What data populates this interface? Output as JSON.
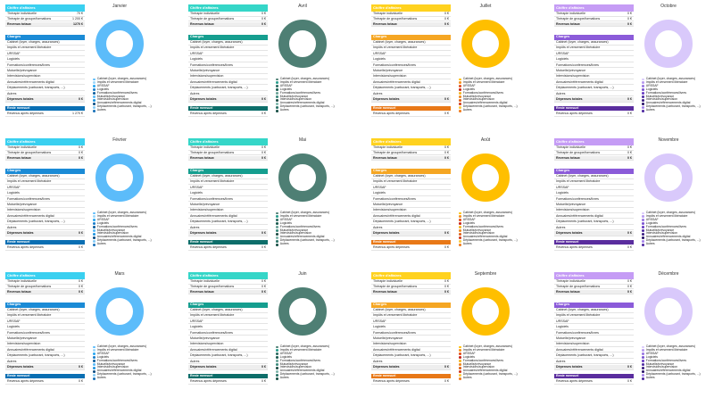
{
  "labels": {
    "ca_header": "Chiffre d'affaires",
    "ca_rows": [
      "Thérapie individuelle",
      "Thérapie de groupe/formations",
      "Revenus totaux"
    ],
    "charges_header": "Charges",
    "charge_rows": [
      "Cabinet (loyer, charges, assurances)",
      "Impôts et versement libératoire",
      "URSSAF",
      "Logiciels",
      "Formations/conférences/livres",
      "Mutuelle/prévoyance",
      "Intervisions/supervision",
      "Annuaires/référencements digital",
      "Déplacements (carburant, transports, ...)",
      "Autres",
      "Dépenses totales"
    ],
    "rm_header": "Reste mensuel",
    "rm_row": "Revenus après dépenses"
  },
  "legend_items": [
    "Cabinet (loyer, charges, assurances)",
    "Impôts et versement libératoire",
    "URSSAF",
    "Logiciels",
    "Formations/conférences/livres",
    "Mutuelle/prévoyance",
    "Intervisions/supervision",
    "Annuaires/référencements digital",
    "Déplacements (carburant, transports, ...)",
    "Autres"
  ],
  "themes": [
    {
      "name": "blue",
      "header": "#3ad0f0",
      "charges": "#1b8bd6",
      "reste": "#0a6fb3",
      "ring": "#5cbcfa",
      "legend": [
        "#5cbcfa",
        "#9fd9fb",
        "#2aa8f2",
        "#1a7fcb",
        "#0e5f9e",
        "#5cbcfa",
        "#2296e0",
        "#0b4d85",
        "#86ccf7",
        "#1c73b9"
      ]
    },
    {
      "name": "teal",
      "header": "#35d6c8",
      "charges": "#159e8f",
      "reste": "#0d6e6a",
      "ring": "#4e7f74",
      "legend": [
        "#4e7f74",
        "#2b9e8d",
        "#2c6d62",
        "#1b5b50",
        "#6aa398",
        "#3d8a7c",
        "#1d4d44",
        "#7fb6ab",
        "#2c7568",
        "#185045"
      ]
    },
    {
      "name": "orange",
      "header": "#ffd21f",
      "charges": "#f5a623",
      "reste": "#e87817",
      "ring": "#ffbf00",
      "legend": [
        "#ffbf00",
        "#f7941d",
        "#e34d1a",
        "#c8241a",
        "#f5b41f",
        "#ef8a21",
        "#e0601a",
        "#d23a1a",
        "#fbc93b",
        "#f17c1f"
      ]
    },
    {
      "name": "purple",
      "header": "#c59cf5",
      "charges": "#8b5bd9",
      "reste": "#5a2d9e",
      "ring": "#d9c9fb",
      "legend": [
        "#d9c9fb",
        "#b89bf0",
        "#9a77e3",
        "#7c55d2",
        "#6a3ec4",
        "#5230a3",
        "#3e2183",
        "#2a1469",
        "#a583ea",
        "#4f2aa1"
      ]
    }
  ],
  "cells": [
    {
      "month": "Janvier",
      "theme": 0,
      "therapie_ind": "70 €",
      "therapie_groupe": "1 200 €",
      "revenus_totaux": "1270 €",
      "depenses_totales": "0 €",
      "reste": "1 270 €"
    },
    {
      "month": "Avril",
      "theme": 1,
      "therapie_ind": "0 €",
      "therapie_groupe": "0 €",
      "revenus_totaux": "0 €",
      "depenses_totales": "0 €",
      "reste": "0 €"
    },
    {
      "month": "Juillet",
      "theme": 2,
      "therapie_ind": "0 €",
      "therapie_groupe": "0 €",
      "revenus_totaux": "0 €",
      "depenses_totales": "0 €",
      "reste": "0 €"
    },
    {
      "month": "Octobre",
      "theme": 3,
      "therapie_ind": "0 €",
      "therapie_groupe": "0 €",
      "revenus_totaux": "0 €",
      "depenses_totales": "0 €",
      "reste": "0 €"
    },
    {
      "month": "Février",
      "theme": 0,
      "therapie_ind": "0 €",
      "therapie_groupe": "0 €",
      "revenus_totaux": "0 €",
      "depenses_totales": "0 €",
      "reste": "0 €"
    },
    {
      "month": "Mai",
      "theme": 1,
      "therapie_ind": "0 €",
      "therapie_groupe": "0 €",
      "revenus_totaux": "0 €",
      "depenses_totales": "0 €",
      "reste": "0 €"
    },
    {
      "month": "Août",
      "theme": 2,
      "therapie_ind": "0 €",
      "therapie_groupe": "0 €",
      "revenus_totaux": "0 €",
      "depenses_totales": "0 €",
      "reste": "0 €"
    },
    {
      "month": "Novembre",
      "theme": 3,
      "therapie_ind": "0 €",
      "therapie_groupe": "0 €",
      "revenus_totaux": "0 €",
      "depenses_totales": "0 €",
      "reste": "0 €"
    },
    {
      "month": "Mars",
      "theme": 0,
      "therapie_ind": "0 €",
      "therapie_groupe": "0 €",
      "revenus_totaux": "0 €",
      "depenses_totales": "0 €",
      "reste": "0 €"
    },
    {
      "month": "Juin",
      "theme": 1,
      "therapie_ind": "0 €",
      "therapie_groupe": "0 €",
      "revenus_totaux": "0 €",
      "depenses_totales": "0 €",
      "reste": "0 €"
    },
    {
      "month": "Septembre",
      "theme": 2,
      "therapie_ind": "0 €",
      "therapie_groupe": "0 €",
      "revenus_totaux": "0 €",
      "depenses_totales": "0 €",
      "reste": "0 €"
    },
    {
      "month": "Décembre",
      "theme": 3,
      "therapie_ind": "0 €",
      "therapie_groupe": "0 €",
      "revenus_totaux": "0 €",
      "depenses_totales": "0 €",
      "reste": "0 €"
    }
  ],
  "chart_data": [
    {
      "type": "pie",
      "title": "Janvier",
      "categories": [
        "Cabinet (loyer, charges, assurances)",
        "Impôts et versement libératoire",
        "URSSAF",
        "Logiciels",
        "Formations/conférences/livres",
        "Mutuelle/prévoyance",
        "Intervisions/supervision",
        "Annuaires/référencements digital",
        "Déplacements (carburant, transports, ...)",
        "Autres"
      ],
      "values": [
        1,
        0,
        0,
        0,
        0,
        0,
        0,
        0,
        0,
        0
      ]
    },
    {
      "type": "pie",
      "title": "Avril",
      "categories": [
        "Cabinet (loyer, charges, assurances)",
        "Impôts et versement libératoire",
        "URSSAF",
        "Logiciels",
        "Formations/conférences/livres",
        "Mutuelle/prévoyance",
        "Intervisions/supervision",
        "Annuaires/référencements digital",
        "Déplacements (carburant, transports, ...)",
        "Autres"
      ],
      "values": [
        1,
        0,
        0,
        0,
        0,
        0,
        0,
        0,
        0,
        0
      ]
    },
    {
      "type": "pie",
      "title": "Juillet",
      "categories": [
        "Cabinet (loyer, charges, assurances)",
        "Impôts et versement libératoire",
        "URSSAF",
        "Logiciels",
        "Formations/conférences/livres",
        "Mutuelle/prévoyance",
        "Intervisions/supervision",
        "Annuaires/référencements digital",
        "Déplacements (carburant, transports, ...)",
        "Autres"
      ],
      "values": [
        1,
        0,
        0,
        0,
        0,
        0,
        0,
        0,
        0,
        0
      ]
    },
    {
      "type": "pie",
      "title": "Octobre",
      "categories": [
        "Cabinet (loyer, charges, assurances)",
        "Impôts et versement libératoire",
        "URSSAF",
        "Logiciels",
        "Formations/conférences/livres",
        "Mutuelle/prévoyance",
        "Intervisions/supervision",
        "Annuaires/référencements digital",
        "Déplacements (carburant, transports, ...)",
        "Autres"
      ],
      "values": [
        1,
        0,
        0,
        0,
        0,
        0,
        0,
        0,
        0,
        0
      ]
    },
    {
      "type": "pie",
      "title": "Février",
      "categories": [
        "Cabinet (loyer, charges, assurances)",
        "Impôts et versement libératoire",
        "URSSAF",
        "Logiciels",
        "Formations/conférences/livres",
        "Mutuelle/prévoyance",
        "Intervisions/supervision",
        "Annuaires/référencements digital",
        "Déplacements (carburant, transports, ...)",
        "Autres"
      ],
      "values": [
        1,
        0,
        0,
        0,
        0,
        0,
        0,
        0,
        0,
        0
      ]
    },
    {
      "type": "pie",
      "title": "Mai",
      "categories": [
        "Cabinet (loyer, charges, assurances)",
        "Impôts et versement libératoire",
        "URSSAF",
        "Logiciels",
        "Formations/conférences/livres",
        "Mutuelle/prévoyance",
        "Intervisions/supervision",
        "Annuaires/référencements digital",
        "Déplacements (carburant, transports, ...)",
        "Autres"
      ],
      "values": [
        1,
        0,
        0,
        0,
        0,
        0,
        0,
        0,
        0,
        0
      ]
    },
    {
      "type": "pie",
      "title": "Août",
      "categories": [
        "Cabinet (loyer, charges, assurances)",
        "Impôts et versement libératoire",
        "URSSAF",
        "Logiciels",
        "Formations/conférences/livres",
        "Mutuelle/prévoyance",
        "Intervisions/supervision",
        "Annuaires/référencements digital",
        "Déplacements (carburant, transports, ...)",
        "Autres"
      ],
      "values": [
        1,
        0,
        0,
        0,
        0,
        0,
        0,
        0,
        0,
        0
      ]
    },
    {
      "type": "pie",
      "title": "Novembre",
      "categories": [
        "Cabinet (loyer, charges, assurances)",
        "Impôts et versement libératoire",
        "URSSAF",
        "Logiciels",
        "Formations/conférences/livres",
        "Mutuelle/prévoyance",
        "Intervisions/supervision",
        "Annuaires/référencements digital",
        "Déplacements (carburant, transports, ...)",
        "Autres"
      ],
      "values": [
        1,
        0,
        0,
        0,
        0,
        0,
        0,
        0,
        0,
        0
      ]
    },
    {
      "type": "pie",
      "title": "Mars",
      "categories": [
        "Cabinet (loyer, charges, assurances)",
        "Impôts et versement libératoire",
        "URSSAF",
        "Logiciels",
        "Formations/conférences/livres",
        "Mutuelle/prévoyance",
        "Intervisions/supervision",
        "Annuaires/référencements digital",
        "Déplacements (carburant, transports, ...)",
        "Autres"
      ],
      "values": [
        1,
        0,
        0,
        0,
        0,
        0,
        0,
        0,
        0,
        0
      ]
    },
    {
      "type": "pie",
      "title": "Juin",
      "categories": [
        "Cabinet (loyer, charges, assurances)",
        "Impôts et versement libératoire",
        "URSSAF",
        "Logiciels",
        "Formations/conférences/livres",
        "Mutuelle/prévoyance",
        "Intervisions/supervision",
        "Annuaires/référencements digital",
        "Déplacements (carburant, transports, ...)",
        "Autres"
      ],
      "values": [
        1,
        0,
        0,
        0,
        0,
        0,
        0,
        0,
        0,
        0
      ]
    },
    {
      "type": "pie",
      "title": "Septembre",
      "categories": [
        "Cabinet (loyer, charges, assurances)",
        "Impôts et versement libératoire",
        "URSSAF",
        "Logiciels",
        "Formations/conférences/livres",
        "Mutuelle/prévoyance",
        "Intervisions/supervision",
        "Annuaires/référencements digital",
        "Déplacements (carburant, transports, ...)",
        "Autres"
      ],
      "values": [
        1,
        0,
        0,
        0,
        0,
        0,
        0,
        0,
        0,
        0
      ]
    },
    {
      "type": "pie",
      "title": "Décembre",
      "categories": [
        "Cabinet (loyer, charges, assurances)",
        "Impôts et versement libératoire",
        "URSSAF",
        "Logiciels",
        "Formations/conférences/livres",
        "Mutuelle/prévoyance",
        "Intervisions/supervision",
        "Annuaires/référencements digital",
        "Déplacements (carburant, transports, ...)",
        "Autres"
      ],
      "values": [
        1,
        0,
        0,
        0,
        0,
        0,
        0,
        0,
        0,
        0
      ]
    }
  ]
}
